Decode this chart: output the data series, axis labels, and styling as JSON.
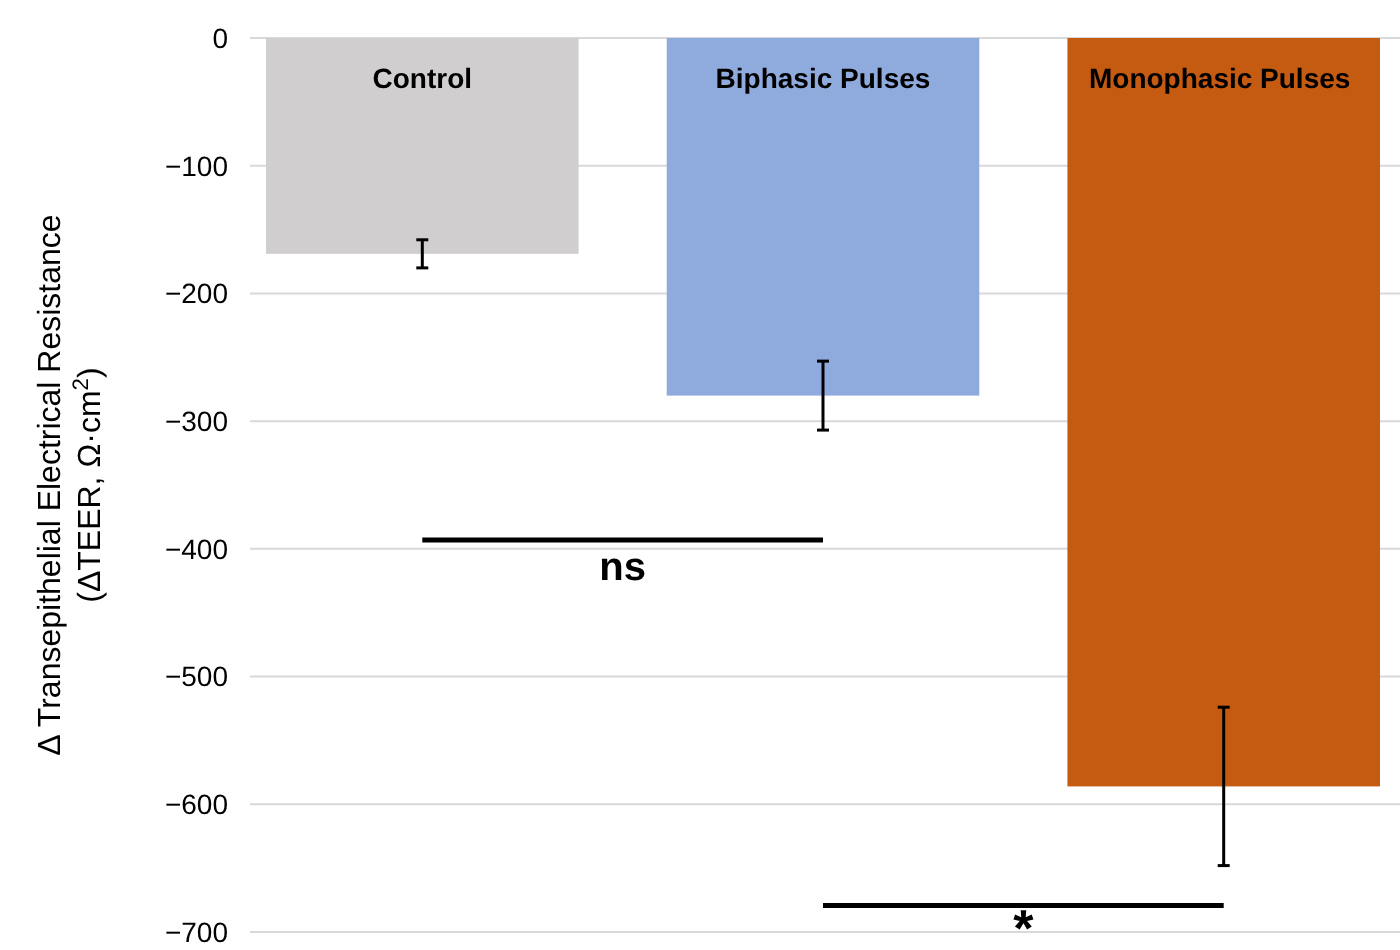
{
  "chart_data": {
    "type": "bar",
    "ylabel": "Δ Transepithelial Electrical Resistance\n(ΔTEER, Ω·cm$^{2}$)",
    "categories": [
      "Control",
      "Biphasic Pulses",
      "Monophasic Pulses"
    ],
    "values": [
      -169,
      -280,
      -586
    ],
    "colors": [
      "#d0cece",
      "#8faadc",
      "#c55a11"
    ],
    "errors": [
      11,
      27,
      62
    ],
    "ylim": [
      -700,
      0
    ],
    "yticks": [
      0,
      -100,
      -200,
      -300,
      -400,
      -500,
      -600,
      -700
    ],
    "grid": "y",
    "annotations": [
      "ns",
      "*"
    ]
  }
}
